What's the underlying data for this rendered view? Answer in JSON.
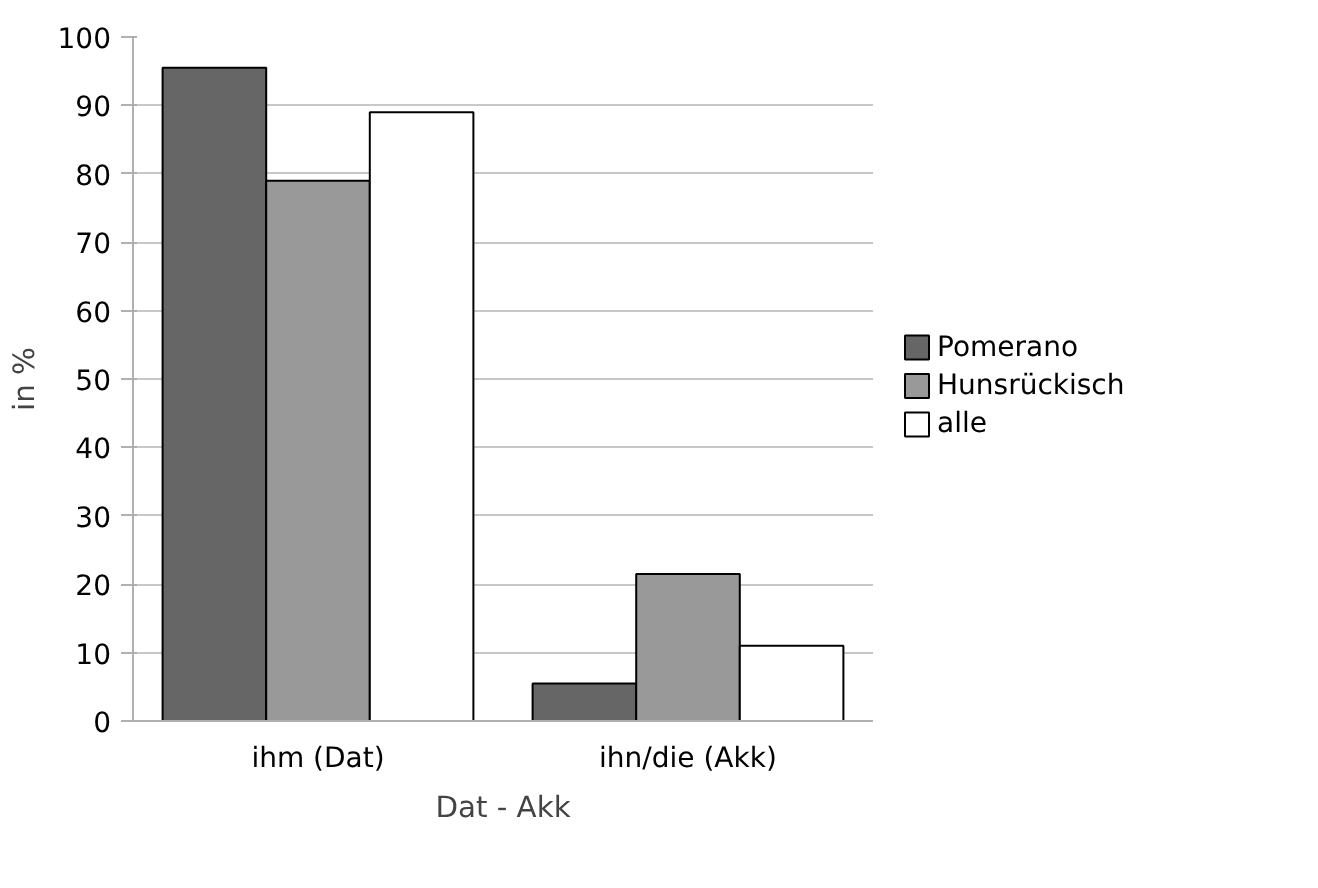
{
  "chart_data": {
    "type": "bar",
    "xlabel": "Dat - Akk",
    "ylabel": "in %",
    "categories": [
      "ihm (Dat)",
      "ihn/die (Akk)"
    ],
    "series": [
      {
        "name": "Pomerano",
        "color": "#666666",
        "values": [
          95.5,
          5.5
        ]
      },
      {
        "name": "Hunsrückisch",
        "color": "#999999",
        "values": [
          79,
          21.5
        ]
      },
      {
        "name": "alle",
        "color": "#ffffff",
        "values": [
          89,
          11
        ]
      }
    ],
    "ylim": [
      0,
      100
    ],
    "yticks": [
      0,
      10,
      20,
      30,
      40,
      50,
      60,
      70,
      80,
      90,
      100
    ],
    "grid": "y",
    "legend": "right"
  }
}
